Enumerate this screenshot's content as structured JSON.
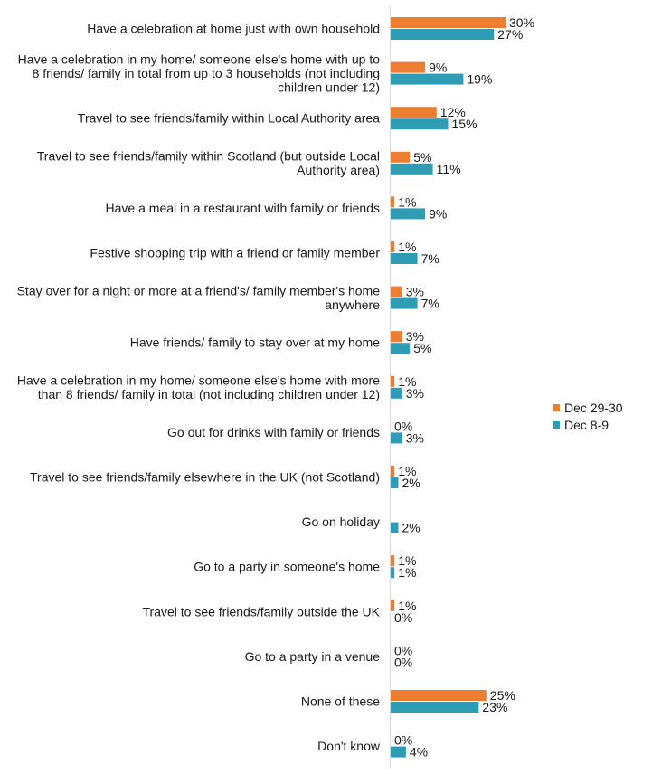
{
  "chart_data": {
    "type": "bar",
    "orientation": "horizontal",
    "categories": [
      [
        "Have a celebration at home just with own household"
      ],
      [
        "Have a celebration in my home/ someone else's home with up to",
        "8 friends/ family in total from up to 3 households (not including",
        "children under 12)"
      ],
      [
        "Travel to see friends/family within Local Authority area"
      ],
      [
        "Travel to see friends/family within Scotland (but outside Local",
        "Authority area)"
      ],
      [
        "Have a meal in a restaurant with family or friends"
      ],
      [
        "Festive shopping trip with a friend or family member"
      ],
      [
        "Stay over for a night or more at a friend's/ family member's home",
        "anywhere"
      ],
      [
        "Have friends/ family to stay over at my home"
      ],
      [
        "Have a celebration in my home/ someone else's home with more",
        "than 8 friends/ family in total (not including children under 12)"
      ],
      [
        "Go out for drinks with family or friends"
      ],
      [
        "Travel to see friends/family elsewhere in the UK (not Scotland)"
      ],
      [
        "Go on holiday"
      ],
      [
        "Go to a party in someone's home"
      ],
      [
        "Travel to see friends/family outside the UK"
      ],
      [
        "Go to a party in a venue"
      ],
      [
        "None of these"
      ],
      [
        "Don't know"
      ]
    ],
    "series": [
      {
        "name": "Dec 29-30",
        "color": "#ED7D31",
        "values": [
          30,
          9,
          12,
          5,
          1,
          1,
          3,
          3,
          1,
          0,
          1,
          null,
          1,
          1,
          0,
          25,
          0
        ],
        "labels": [
          "30%",
          "9%",
          "12%",
          "5%",
          "1%",
          "1%",
          "3%",
          "3%",
          "1%",
          "0%",
          "1%",
          "",
          "1%",
          "1%",
          "0%",
          "25%",
          "0%"
        ]
      },
      {
        "name": "Dec 8-9",
        "color": "#2E9CB5",
        "values": [
          27,
          19,
          15,
          11,
          9,
          7,
          7,
          5,
          3,
          3,
          2,
          2,
          1,
          0,
          0,
          23,
          4
        ],
        "labels": [
          "27%",
          "19%",
          "15%",
          "11%",
          "9%",
          "7%",
          "7%",
          "5%",
          "3%",
          "3%",
          "2%",
          "2%",
          "1%",
          "0%",
          "0%",
          "23%",
          "4%"
        ]
      }
    ],
    "xlim": [
      0,
      30
    ],
    "legend": "right"
  }
}
